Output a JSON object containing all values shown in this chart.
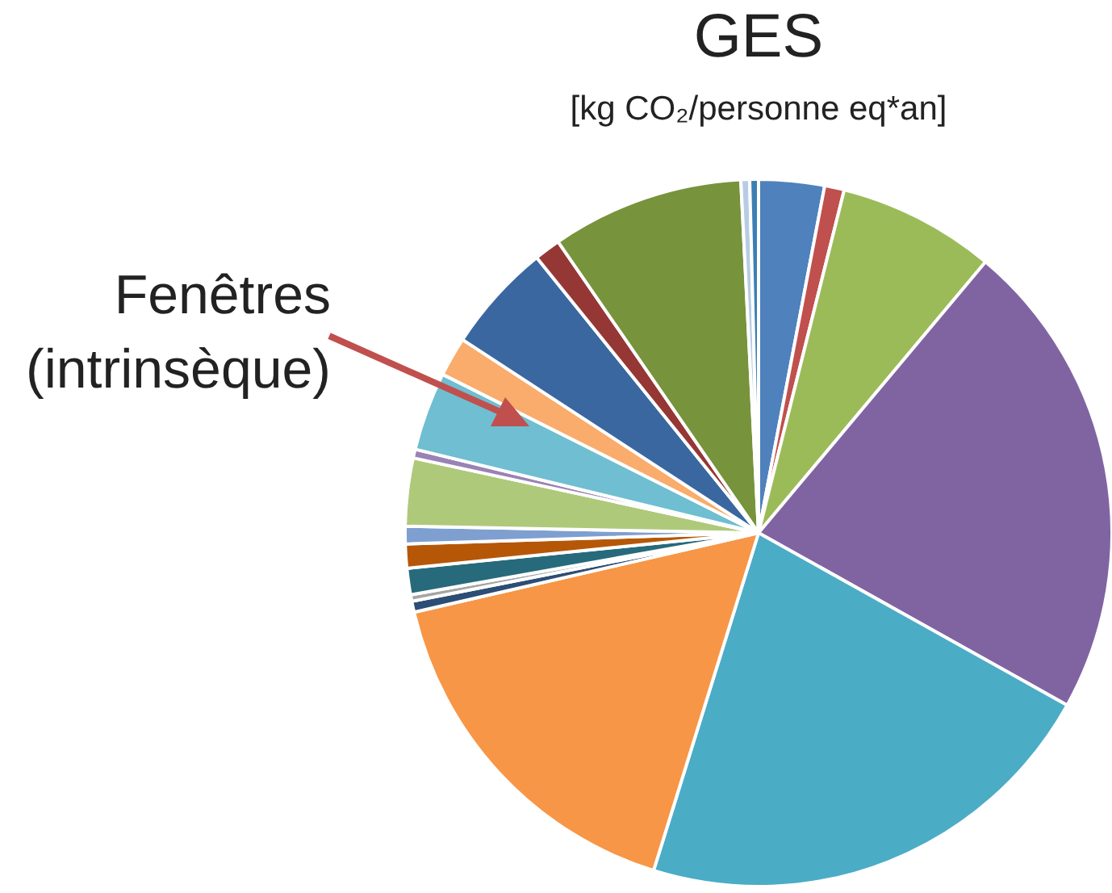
{
  "chart_data": {
    "type": "pie",
    "title": "GES",
    "subtitle": "[kg CO₂/personne eq*an]",
    "categories": [
      null,
      null,
      null,
      null,
      null,
      null,
      null,
      null,
      null,
      null,
      null,
      null,
      null,
      null,
      null,
      null,
      null,
      null,
      null,
      null
    ],
    "values": [
      3.0,
      0.9,
      7.2,
      22.0,
      21.7,
      16.6,
      0.5,
      0.3,
      1.2,
      1.1,
      0.8,
      3.1,
      0.4,
      3.6,
      1.8,
      5.0,
      1.2,
      8.8,
      0.4,
      0.4
    ],
    "colors": [
      "#4f81bd",
      "#c0504d",
      "#9bbb59",
      "#8064a2",
      "#4bacc6",
      "#f79646",
      "#2c4d75",
      "#a5a5a5",
      "#276a7c",
      "#b65708",
      "#7f9fd0",
      "#afc97a",
      "#9983b5",
      "#6fbed1",
      "#f9ac6b",
      "#3a67a0",
      "#953735",
      "#77933c",
      "#b7cce4",
      "#3c7fb5"
    ],
    "annotations": [
      "Fenêtres\n(intrinsèque)"
    ],
    "legend": false
  }
}
